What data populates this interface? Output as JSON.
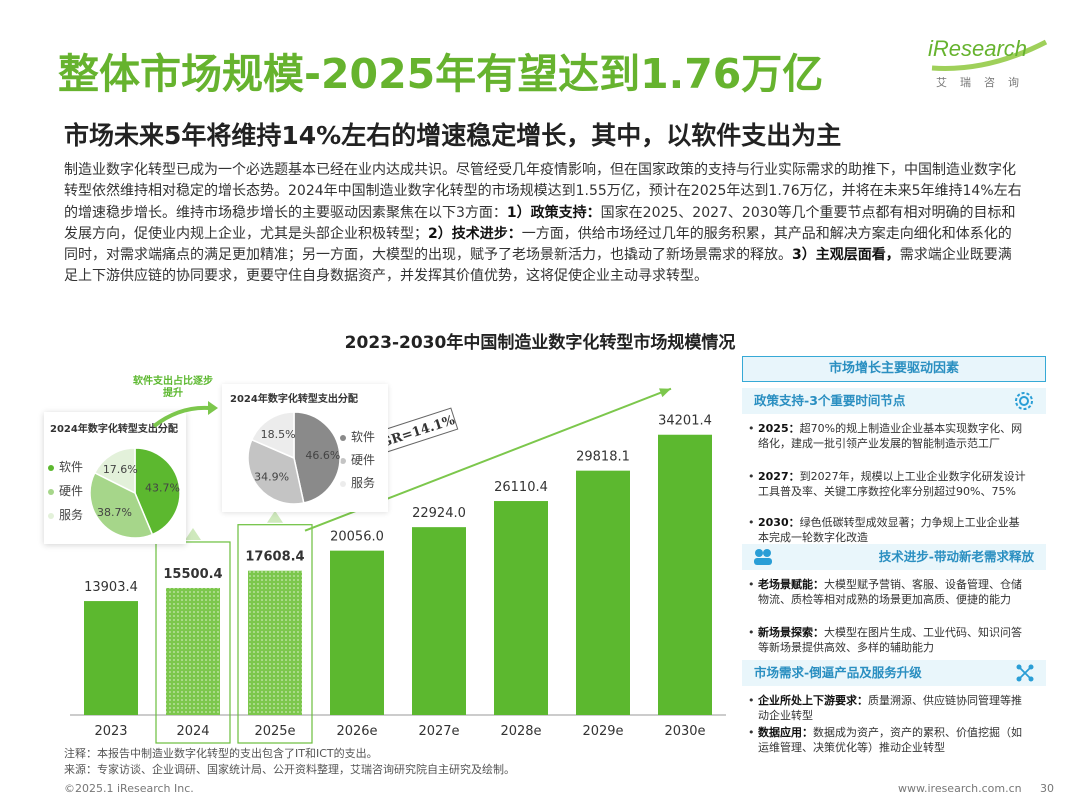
{
  "title": "整体市场规模-2025年有望达到1.76万亿",
  "logo": {
    "brand": "iResearch",
    "sub": "艾瑞咨询"
  },
  "subtitle": "市场未来5年将维持14%左右的增速稳定增长，其中，以软件支出为主",
  "body": {
    "p1": "制造业数字化转型已成为一个必选题基本已经在业内达成共识。尽管经受几年疫情影响，但在国家政策的支持与行业实际需求的助推下，中国制造业数字化转型依然维持相对稳定的增长态势。2024年中国制造业数字化转型的市场规模达到1.55万亿，预计在2025年达到1.76万亿，并将在未来5年维持14%左右的增速稳步增长。维持市场稳步增长的主要驱动因素聚焦在以下3方面：",
    "b1": "1）政策支持：",
    "p2": "国家在2025、2027、2030等几个重要节点都有相对明确的目标和发展方向，促使业内规上企业，尤其是头部企业积极转型；",
    "b2": "2）技术进步：",
    "p3": "一方面，供给市场经过几年的服务积累，其产品和解决方案走向细化和体系化的同时，对需求端痛点的满足更加精准；另一方面，大模型的出现，赋予了老场景新活力，也撬动了新场景需求的释放。",
    "b3": "3）主观层面看，",
    "p4": "需求端企业既要满足上下游供应链的协同要求，更要守住自身数据资产，并发挥其价值优势，这将促使企业主动寻求转型。"
  },
  "chart_data": [
    {
      "type": "bar",
      "title": "2023-2030年中国制造业数字化转型市场规模情况",
      "categories": [
        "2023",
        "2024",
        "2025e",
        "2026e",
        "2027e",
        "2028e",
        "2029e",
        "2030e"
      ],
      "values": [
        13903.4,
        15500.4,
        17608.4,
        20056.0,
        22924.0,
        26110.4,
        29818.1,
        34201.4
      ],
      "value_labels": [
        "13903.4",
        "15500.4",
        "17608.4",
        "20056.0",
        "22924.0",
        "26110.4",
        "29818.1",
        "34201.4"
      ],
      "ylim": [
        0,
        36000
      ],
      "annotation": "CAGR=14.1%",
      "color": "#5cb82f",
      "highlight": [
        "2024",
        "2025e"
      ]
    },
    {
      "type": "pie",
      "title": "2024年数字化转型支出分配",
      "labels": [
        "软件",
        "硬件",
        "服务"
      ],
      "values": [
        43.7,
        38.7,
        17.6
      ],
      "value_labels": [
        "43.7%",
        "38.7%",
        "17.6%"
      ],
      "colors": [
        "#5cb82f",
        "#a6d68a",
        "#e3f1da"
      ]
    },
    {
      "type": "pie",
      "title": "2024年数字化转型支出分配",
      "labels": [
        "软件",
        "硬件",
        "服务"
      ],
      "values": [
        46.6,
        34.9,
        18.5
      ],
      "value_labels": [
        "46.6%",
        "34.9%",
        "18.5%"
      ],
      "colors": [
        "#8a8a8a",
        "#c4c4c4",
        "#ececec"
      ]
    }
  ],
  "pie_callout": "软件支出占比逐步提升",
  "right_panel": {
    "header": "市场增长主要驱动因素",
    "sections": [
      {
        "title": "政策支持-3个重要时间节点",
        "items": [
          {
            "key": "2025：",
            "text": "超70%的规上制造业企业基本实现数字化、网络化，建成一批引领产业发展的智能制造示范工厂"
          },
          {
            "key": "2027：",
            "text": "到2027年，规模以上工业企业数字化研发设计工具普及率、关键工序数控化率分别超过90%、75%"
          },
          {
            "key": "2030：",
            "text": "绿色低碳转型成效显著；力争规上工业企业基本完成一轮数字化改造"
          }
        ]
      },
      {
        "title": "技术进步-带动新老需求释放",
        "items": [
          {
            "key": "老场景赋能：",
            "text": "大模型赋予营销、客服、设备管理、仓储物流、质检等相对成熟的场景更加高质、便捷的能力"
          },
          {
            "key": "新场景探索：",
            "text": "大模型在图片生成、工业代码、知识问答等新场景提供高效、多样的辅助能力"
          }
        ]
      },
      {
        "title": "市场需求-倒逼产品及服务升级",
        "items": [
          {
            "key": "企业所处上下游要求：",
            "text": "质量溯源、供应链协同管理等推动企业转型"
          },
          {
            "key": "数据应用：",
            "text": "数据成为资产，资产的累积、价值挖掘（如运维管理、决策优化等）推动企业转型"
          }
        ]
      }
    ]
  },
  "footnotes": {
    "note": "注释：本报告中制造业数字化转型的支出包含了IT和ICT的支出。",
    "source": "来源：专家访谈、企业调研、国家统计局、公开资料整理，艾瑞咨询研究院自主研究及绘制。"
  },
  "footer": {
    "copyright": "©2025.1 iResearch Inc.",
    "url": "www.iresearch.com.cn",
    "page": "30"
  }
}
